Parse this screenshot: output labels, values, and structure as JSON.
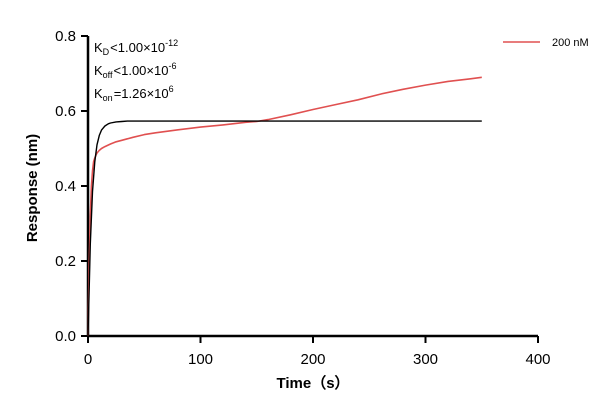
{
  "chart_data": {
    "type": "line",
    "title": "",
    "xlabel": "Time（s）",
    "ylabel": "Response (nm)",
    "xlim": [
      0,
      400
    ],
    "ylim": [
      0,
      0.8
    ],
    "x_ticks": [
      0,
      100,
      200,
      300,
      400
    ],
    "y_ticks": [
      0.0,
      0.2,
      0.4,
      0.6,
      0.8
    ],
    "x_tick_labels": [
      "0",
      "100",
      "200",
      "300",
      "400"
    ],
    "y_tick_labels": [
      "0.0",
      "0.2",
      "0.4",
      "0.6",
      "0.8"
    ],
    "grid": false,
    "legend_position": "top-right",
    "annotations": {
      "kd": {
        "sym": "K",
        "sub": "D",
        "rel": "<",
        "mant": "1.00×10",
        "exp": "-12"
      },
      "koff": {
        "sym": "K",
        "sub": "off",
        "rel": "<",
        "mant": "1.00×10",
        "exp": "-6"
      },
      "kon": {
        "sym": "K",
        "sub": "on",
        "rel": "=",
        "mant": "1.26×10",
        "exp": "6"
      }
    },
    "series": [
      {
        "name": "200 nM",
        "color": "#e05050",
        "x": [
          0,
          1,
          2,
          3,
          4,
          5,
          6,
          7,
          8,
          10,
          12,
          15,
          20,
          25,
          30,
          40,
          50,
          60,
          80,
          100,
          120,
          140,
          150,
          160,
          180,
          200,
          220,
          240,
          260,
          280,
          300,
          320,
          340,
          350
        ],
        "y": [
          0.0,
          0.18,
          0.32,
          0.4,
          0.44,
          0.465,
          0.475,
          0.482,
          0.488,
          0.495,
          0.5,
          0.505,
          0.512,
          0.518,
          0.522,
          0.53,
          0.537,
          0.542,
          0.55,
          0.557,
          0.563,
          0.57,
          0.572,
          0.577,
          0.59,
          0.604,
          0.617,
          0.63,
          0.645,
          0.658,
          0.669,
          0.679,
          0.686,
          0.69
        ]
      },
      {
        "color": "#000000",
        "x": [
          0,
          2,
          4,
          6,
          8,
          10,
          12,
          15,
          18,
          20,
          25,
          30,
          35,
          40,
          60,
          100,
          150,
          200,
          250,
          300,
          350
        ],
        "y": [
          0.0,
          0.245,
          0.385,
          0.465,
          0.51,
          0.535,
          0.549,
          0.56,
          0.566,
          0.568,
          0.571,
          0.572,
          0.573,
          0.573,
          0.573,
          0.573,
          0.573,
          0.573,
          0.573,
          0.573,
          0.573
        ]
      }
    ]
  }
}
